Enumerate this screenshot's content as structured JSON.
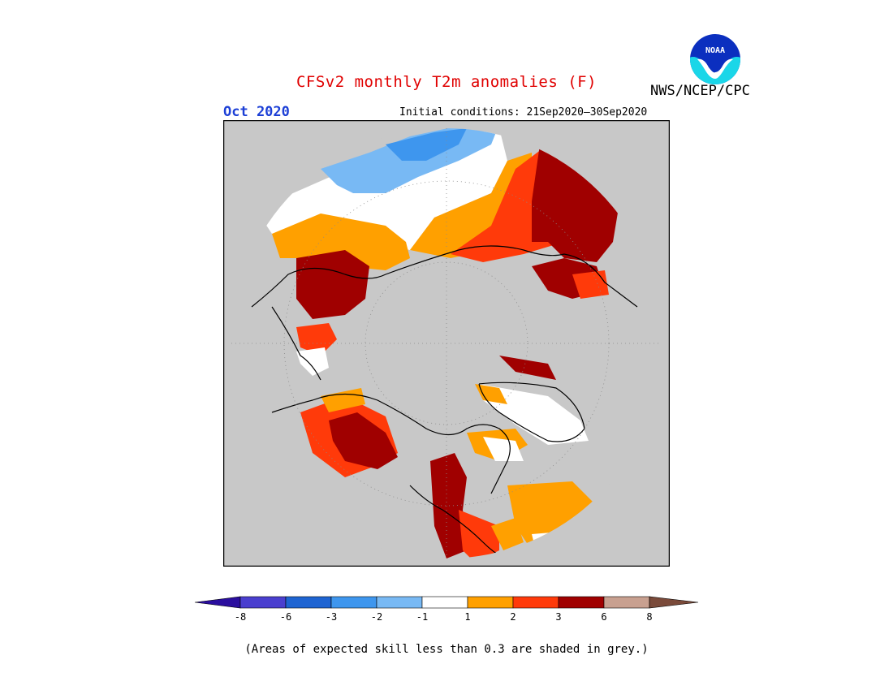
{
  "title": "CFSv2 monthly T2m anomalies (F)",
  "forecast_month": "Oct 2020",
  "initial_conditions": "Initial conditions: 21Sep2020–30Sep2020",
  "agency": "NWS/NCEP/CPC",
  "logo_text": "NOAA",
  "footnote": "(Areas of expected skill less than 0.3 are shaded in grey.)",
  "colors": {
    "ocean_grey": "#c8c8c8",
    "frame": "#000000",
    "neg_lt_8": "#2a0e9e",
    "neg_8_6": "#4a3fcf",
    "neg_6_3": "#1e64d2",
    "neg_3_2": "#3e96ee",
    "neg_2_1": "#78b9f4",
    "neutral": "#ffffff",
    "pos_1_2": "#ffa000",
    "pos_2_3": "#ff3a0a",
    "pos_3_6": "#a00000",
    "pos_6_8": "#c8a090",
    "pos_gt_8": "#7a4a3a"
  },
  "colorbar": {
    "colors": [
      "#2a0e9e",
      "#4a3fcf",
      "#1e64d2",
      "#3e96ee",
      "#78b9f4",
      "#ffffff",
      "#ffa000",
      "#ff3a0a",
      "#a00000",
      "#c8a090",
      "#7a4a3a"
    ],
    "ticks": [
      "-8",
      "-6",
      "-3",
      "-2",
      "-1",
      "1",
      "2",
      "3",
      "6",
      "8"
    ]
  }
}
